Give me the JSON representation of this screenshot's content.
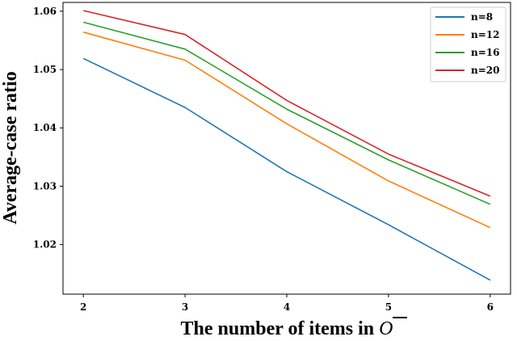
{
  "chart_data": {
    "type": "line",
    "title": "",
    "xlabel_prefix": "The number of items in ",
    "xlabel_symbol": "O",
    "ylabel": "Average-case ratio",
    "x": [
      2,
      3,
      4,
      5,
      6
    ],
    "xlim": [
      1.8,
      6.2
    ],
    "ylim": [
      1.0115,
      1.0615
    ],
    "xticks": [
      2,
      3,
      4,
      5,
      6
    ],
    "xtick_labels": [
      "2",
      "3",
      "4",
      "5",
      "6"
    ],
    "yticks": [
      1.02,
      1.03,
      1.04,
      1.05,
      1.06
    ],
    "ytick_labels": [
      "1.02",
      "1.03",
      "1.04",
      "1.05",
      "1.06"
    ],
    "grid": false,
    "legend_position": "top-right",
    "series": [
      {
        "name": "n=8",
        "color": "#1f77b4",
        "values": [
          1.0519,
          1.0435,
          1.0325,
          1.0234,
          1.0139
        ]
      },
      {
        "name": "n=12",
        "color": "#ff7f0e",
        "values": [
          1.0564,
          1.0516,
          1.0407,
          1.0309,
          1.0229
        ]
      },
      {
        "name": "n=16",
        "color": "#2ca02c",
        "values": [
          1.0581,
          1.0535,
          1.0432,
          1.0345,
          1.0269
        ]
      },
      {
        "name": "n=20",
        "color": "#d62728",
        "values": [
          1.0601,
          1.056,
          1.0447,
          1.0355,
          1.0283
        ]
      }
    ]
  }
}
